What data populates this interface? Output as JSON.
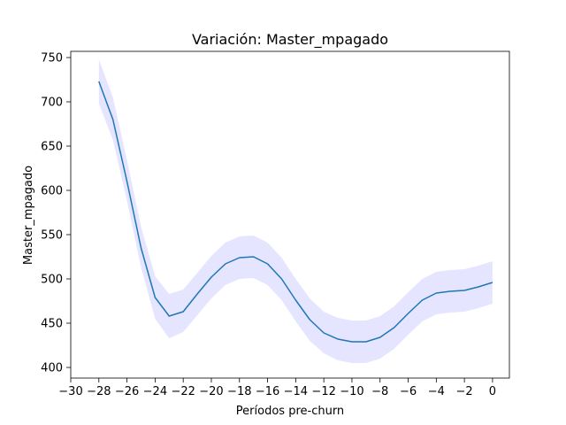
{
  "chart_data": {
    "type": "line",
    "title": "Variación: Master_mpagado",
    "xlabel": "Períodos pre-churn",
    "ylabel": "Master_mpagado",
    "xlim": [
      -30,
      1.2
    ],
    "ylim": [
      388,
      757
    ],
    "x_ticks": [
      -30,
      -28,
      -26,
      -24,
      -22,
      -20,
      -18,
      -16,
      -14,
      -12,
      -10,
      -8,
      -6,
      -4,
      -2,
      0
    ],
    "x_tick_labels": [
      "−30",
      "−28",
      "−26",
      "−24",
      "−22",
      "−20",
      "−18",
      "−16",
      "−14",
      "−12",
      "−10",
      "−8",
      "−6",
      "−4",
      "−2",
      "0"
    ],
    "y_ticks": [
      400,
      450,
      500,
      550,
      600,
      650,
      700,
      750
    ],
    "y_tick_labels": [
      "400",
      "450",
      "500",
      "550",
      "600",
      "650",
      "700",
      "750"
    ],
    "grid": false,
    "line_color": "#1f77b4",
    "band_color": "#0000ff",
    "x": [
      -28,
      -27,
      -26,
      -25,
      -24,
      -23,
      -22,
      -21,
      -20,
      -19,
      -18,
      -17,
      -16,
      -15,
      -14,
      -13,
      -12,
      -11,
      -10,
      -9,
      -8,
      -7,
      -6,
      -5,
      -4,
      -3,
      -2,
      -1,
      0
    ],
    "series": [
      {
        "values": [
          723,
          680,
          610,
          535,
          479,
          458,
          463,
          483,
          502,
          517,
          524,
          525,
          517,
          500,
          476,
          454,
          439,
          432,
          429,
          429,
          434,
          445,
          461,
          476,
          484,
          486,
          487,
          491,
          496
        ],
        "lower": [
          698,
          657,
          588,
          513,
          455,
          433,
          440,
          459,
          478,
          493,
          500,
          501,
          493,
          476,
          452,
          430,
          416,
          408,
          405,
          405,
          410,
          421,
          437,
          452,
          460,
          462,
          463,
          467,
          472
        ],
        "upper": [
          748,
          705,
          634,
          559,
          503,
          483,
          488,
          507,
          526,
          541,
          548,
          549,
          541,
          524,
          500,
          478,
          463,
          456,
          453,
          453,
          458,
          469,
          485,
          500,
          508,
          510,
          511,
          515,
          520
        ]
      }
    ]
  }
}
